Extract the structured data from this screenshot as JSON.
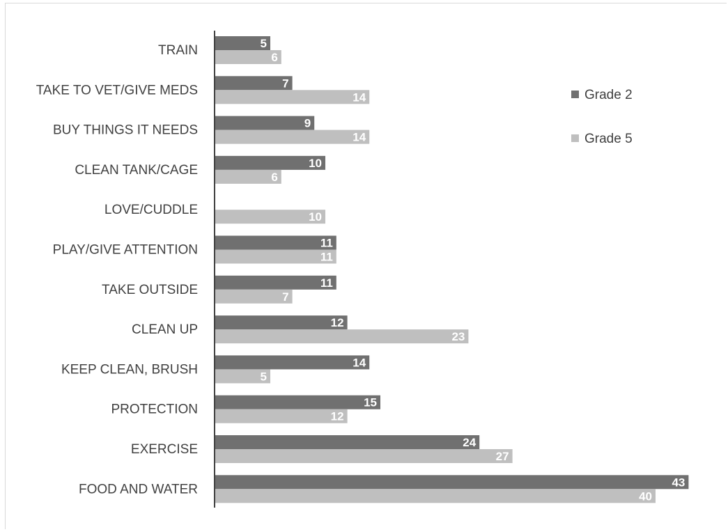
{
  "chart_data": {
    "type": "bar",
    "orientation": "horizontal",
    "categories": [
      "TRAIN",
      "TAKE TO VET/GIVE MEDS",
      "BUY THINGS IT NEEDS",
      "CLEAN TANK/CAGE",
      "LOVE/CUDDLE",
      "PLAY/GIVE ATTENTION",
      "TAKE OUTSIDE",
      "CLEAN UP",
      "KEEP CLEAN, BRUSH",
      "PROTECTION",
      "EXERCISE",
      "FOOD AND WATER"
    ],
    "series": [
      {
        "name": "Grade 2",
        "color": "#707070",
        "values": [
          5,
          7,
          9,
          10,
          null,
          11,
          11,
          12,
          14,
          15,
          24,
          43
        ]
      },
      {
        "name": "Grade 5",
        "color": "#bfbfbf",
        "values": [
          6,
          14,
          14,
          6,
          10,
          11,
          7,
          23,
          5,
          12,
          27,
          40
        ]
      }
    ],
    "xlim": [
      0,
      43
    ],
    "title": "",
    "xlabel": "",
    "ylabel": "",
    "grid": false,
    "data_labels": true,
    "legend": "right"
  }
}
